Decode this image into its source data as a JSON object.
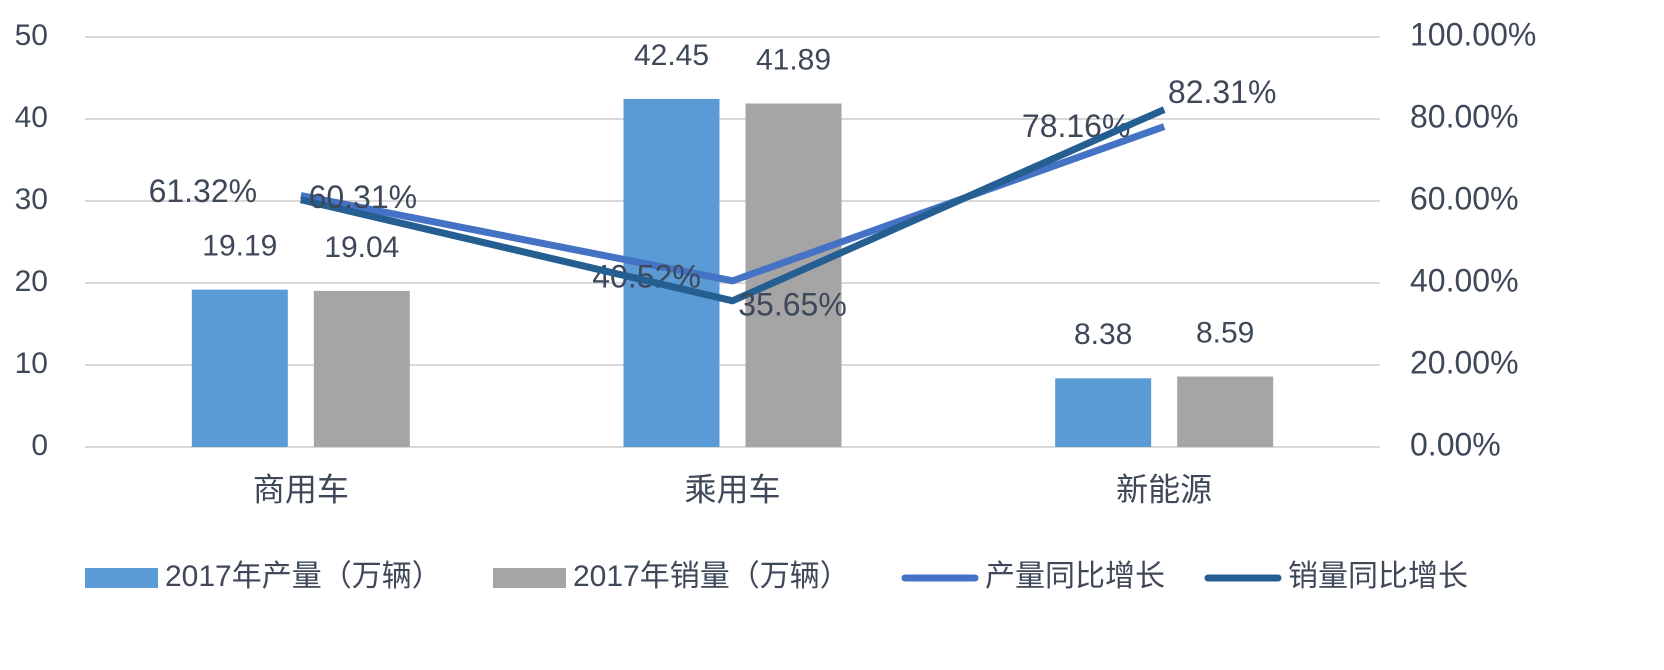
{
  "chart_data": {
    "type": "bar",
    "categories": [
      "商用车",
      "乘用车",
      "新能源"
    ],
    "series": [
      {
        "name": "2017年产量（万辆）",
        "type": "bar",
        "color": "#5b9bd5",
        "values": [
          19.19,
          42.45,
          8.38
        ]
      },
      {
        "name": "2017年销量（万辆）",
        "type": "bar",
        "color": "#a5a5a5",
        "values": [
          19.04,
          41.89,
          8.59
        ]
      },
      {
        "name": "产量同比增长",
        "type": "line",
        "axis": "y2",
        "color": "#4472c4",
        "values": [
          61.32,
          40.52,
          78.16
        ],
        "value_labels": [
          "61.32%",
          "40.52%",
          "78.16%"
        ]
      },
      {
        "name": "销量同比增长",
        "type": "line",
        "axis": "y2",
        "color": "#255e91",
        "values": [
          60.31,
          35.65,
          82.31
        ],
        "value_labels": [
          "60.31%",
          "35.65%",
          "82.31%"
        ]
      }
    ],
    "ylim": [
      0,
      50
    ],
    "yticks": [
      0,
      10,
      20,
      30,
      40,
      50
    ],
    "y2lim": [
      0,
      100
    ],
    "y2ticks": [
      {
        "value": 0,
        "label": "0.00%"
      },
      {
        "value": 20,
        "label": "20.00%"
      },
      {
        "value": 40,
        "label": "40.00%"
      },
      {
        "value": 60,
        "label": "60.00%"
      },
      {
        "value": 80,
        "label": "80.00%"
      },
      {
        "value": 100,
        "label": "100.00%"
      }
    ],
    "grid": true,
    "legend": "bottom"
  }
}
